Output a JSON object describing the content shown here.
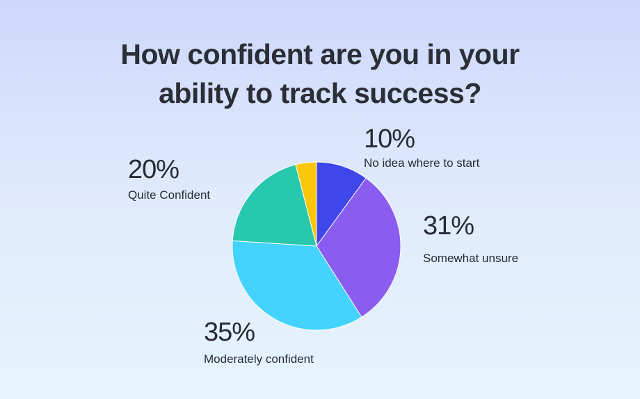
{
  "chart_data": {
    "type": "pie",
    "title": "How confident are you in your ability to track success?",
    "title_lines": [
      "How confident are you in your",
      "ability to track success?"
    ],
    "slices": [
      {
        "label": "No idea where to start",
        "value": 10,
        "value_label": "10%",
        "color": "#3f47ea"
      },
      {
        "label": "Somewhat unsure",
        "value": 31,
        "value_label": "31%",
        "color": "#8b5cf0"
      },
      {
        "label": "Moderately confident",
        "value": 35,
        "value_label": "35%",
        "color": "#43d3fc"
      },
      {
        "label": "Quite Confident",
        "value": 20,
        "value_label": "20%",
        "color": "#27c8ad"
      },
      {
        "label": "",
        "value": 4,
        "value_label": "",
        "color": "#fcc70a"
      }
    ],
    "legend": false
  }
}
